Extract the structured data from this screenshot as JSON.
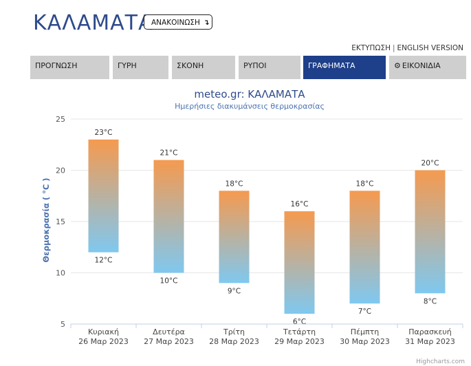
{
  "header": {
    "city": "ΚΑΛΑΜΑΤΑ",
    "announcement_button": "ΑΝΑΚΟΙΝΩΣΗ",
    "announcement_arrow": "↴",
    "print_link": "ΕΚΤΥΠΩΣΗ",
    "separator": "|",
    "english_link": "ENGLISH VERSION"
  },
  "tabs": [
    {
      "label": "ΠΡΟΓΝΩΣΗ"
    },
    {
      "label": "ΓΥΡΗ"
    },
    {
      "label": "ΣΚΟΝΗ"
    },
    {
      "label": "ΡΥΠΟΙ"
    },
    {
      "label": "ΓΡΑΦΗΜΑΤΑ",
      "active": true
    },
    {
      "label": "ΕΙΚΟΝΙΔΙΑ",
      "icon": "gear-icon"
    }
  ],
  "colors": {
    "accent": "#1e3f8a",
    "bar_top": "#f59a4f",
    "bar_bottom": "#7fc8f0",
    "title": "#2e4a8c",
    "subtitle": "#4a72b0"
  },
  "chart_data": {
    "type": "bar",
    "subtype": "columnrange",
    "title": "meteo.gr: ΚΑΛΑΜΑΤΑ",
    "subtitle": "Ημερήσιες διακυμάνσεις θερμοκρασίας",
    "ylabel": "Θερμοκρασία ( °C )",
    "xlabel": "",
    "ylim": [
      5,
      25
    ],
    "yticks": [
      5,
      10,
      15,
      20,
      25
    ],
    "grid": true,
    "unit": "°C",
    "categories": [
      {
        "day": "Κυριακή",
        "date": "26 Μαρ 2023"
      },
      {
        "day": "Δευτέρα",
        "date": "27 Μαρ 2023"
      },
      {
        "day": "Τρίτη",
        "date": "28 Μαρ 2023"
      },
      {
        "day": "Τετάρτη",
        "date": "29 Μαρ 2023"
      },
      {
        "day": "Πέμπτη",
        "date": "30 Μαρ 2023"
      },
      {
        "day": "Παρασκευή",
        "date": "31 Μαρ 2023"
      }
    ],
    "min": [
      12,
      10,
      9,
      6,
      7,
      8
    ],
    "max": [
      23,
      21,
      18,
      16,
      18,
      20
    ],
    "credits": "Highcharts.com"
  }
}
